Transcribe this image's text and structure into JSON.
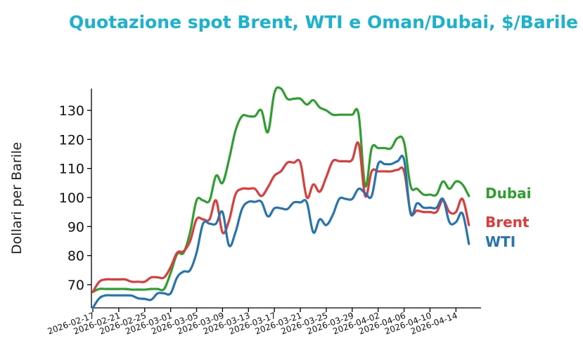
{
  "chart_data": {
    "type": "line",
    "title": "Quotazione spot Brent, WTI e Oman/Dubai, $/Barile",
    "ylabel": "Dollari per Barile",
    "xlabel": "",
    "ylim": [
      62,
      137.5
    ],
    "yticks": [
      70,
      80,
      90,
      100,
      110,
      120,
      130
    ],
    "grid": false,
    "legend": "labels at line ends",
    "xlim": [
      "2026-02-17",
      "2026-04-17"
    ],
    "xticks": [
      "2026-02-17",
      "2026-02-21",
      "2026-02-25",
      "2026-03-01",
      "2026-03-05",
      "2026-03-09",
      "2026-03-13",
      "2026-03-17",
      "2026-03-21",
      "2026-03-25",
      "2026-03-29",
      "2026-04-02",
      "2026-04-06",
      "2026-04-10",
      "2026-04-14"
    ],
    "x": [
      "2026-02-17",
      "2026-02-18",
      "2026-02-19",
      "2026-02-20",
      "2026-02-21",
      "2026-02-22",
      "2026-02-23",
      "2026-02-24",
      "2026-02-25",
      "2026-02-26",
      "2026-02-27",
      "2026-02-28",
      "2026-03-01",
      "2026-03-02",
      "2026-03-03",
      "2026-03-04",
      "2026-03-05",
      "2026-03-06",
      "2026-03-07",
      "2026-03-08",
      "2026-03-09",
      "2026-03-10",
      "2026-03-11",
      "2026-03-12",
      "2026-03-13",
      "2026-03-14",
      "2026-03-15",
      "2026-03-16",
      "2026-03-17",
      "2026-03-18",
      "2026-03-19",
      "2026-03-20",
      "2026-03-21",
      "2026-03-22",
      "2026-03-23",
      "2026-03-24",
      "2026-03-25",
      "2026-03-26",
      "2026-03-27",
      "2026-03-28",
      "2026-03-29",
      "2026-03-30",
      "2026-03-31",
      "2026-04-01",
      "2026-04-02",
      "2026-04-03",
      "2026-04-04",
      "2026-04-05",
      "2026-04-06",
      "2026-04-07",
      "2026-04-08",
      "2026-04-09",
      "2026-04-10",
      "2026-04-11",
      "2026-04-12",
      "2026-04-13",
      "2026-04-14",
      "2026-04-15",
      "2026-04-16"
    ],
    "series": [
      {
        "name": "Dubai",
        "color": "#2ca02c",
        "values": [
          67.5,
          68.5,
          68.5,
          68.5,
          68.5,
          68.5,
          68.3,
          68.3,
          68.3,
          68.5,
          68.5,
          68.5,
          74,
          80.5,
          81,
          88,
          99,
          99,
          99,
          107.5,
          105,
          113,
          123,
          128,
          128,
          128,
          130,
          122.5,
          136,
          137.5,
          134,
          134,
          134,
          132,
          133.5,
          131,
          130,
          128.5,
          128.5,
          128.5,
          128.5,
          128.5,
          104,
          117,
          117,
          117,
          117,
          120.5,
          119,
          104,
          103,
          101,
          101,
          101,
          105.5,
          103,
          105.5,
          104.5,
          100.5
        ]
      },
      {
        "name": "Brent",
        "color": "#e03a3a",
        "values": [
          67.5,
          71,
          71.8,
          71.8,
          71.8,
          71.8,
          71,
          71,
          71,
          72.5,
          72.5,
          72.5,
          76,
          81,
          81.5,
          85,
          92.5,
          92.5,
          92.5,
          99,
          88,
          92,
          101,
          103,
          103,
          103,
          100.5,
          103.5,
          107.5,
          109,
          112,
          112,
          112,
          100,
          104.5,
          102,
          107,
          112.5,
          112.5,
          112.5,
          113,
          118.5,
          100.5,
          109,
          109,
          109,
          109,
          109.5,
          109,
          95,
          95.5,
          95,
          95,
          95,
          99,
          95,
          95,
          99.5,
          90.5
        ]
      },
      {
        "name": "WTI",
        "color": "#2474b5",
        "values": [
          62,
          65.3,
          66.3,
          66.3,
          66.3,
          66.3,
          66.2,
          65.3,
          65.1,
          64.8,
          67,
          67,
          67,
          72.5,
          74.5,
          75,
          81,
          91,
          91,
          91,
          95,
          83.5,
          88,
          96,
          98.5,
          98.5,
          98.5,
          93.5,
          96.3,
          96.3,
          96,
          98.3,
          98.3,
          98.3,
          88,
          92.5,
          90.5,
          94,
          99.5,
          99.5,
          99.5,
          103,
          101.5,
          100.5,
          111.5,
          111.5,
          111.5,
          112.5,
          113,
          94.5,
          98,
          96.5,
          96.5,
          96.5,
          99.5,
          91.5,
          91.5,
          94.5,
          84
        ]
      }
    ]
  }
}
